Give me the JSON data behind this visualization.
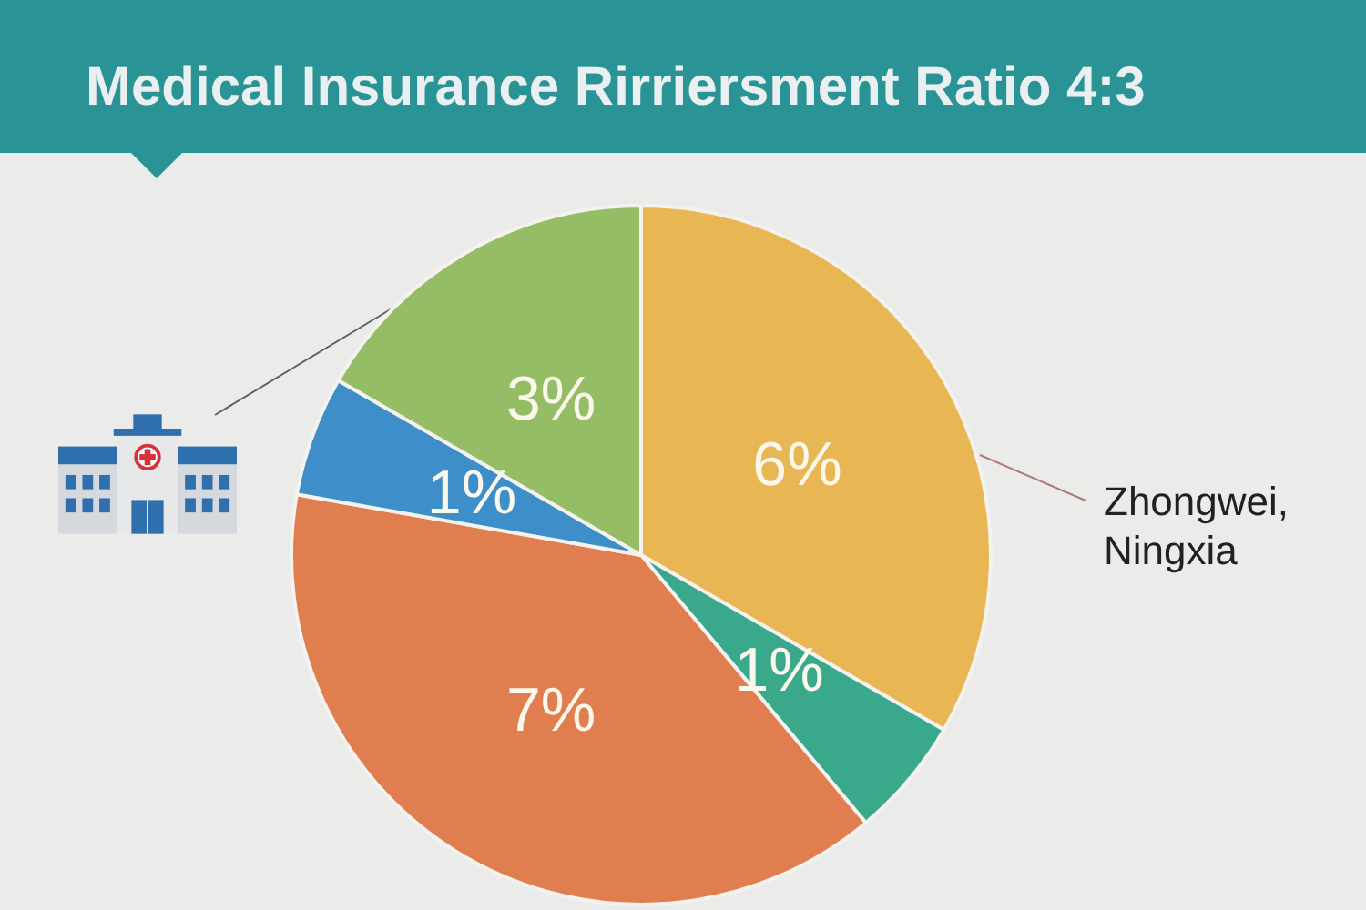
{
  "chart_data": {
    "type": "pie",
    "title": "Medical Insurance Rirriersment Ratio 4:3",
    "categories": [
      null,
      null,
      null,
      null,
      null
    ],
    "values": [
      6,
      1,
      7,
      1,
      3
    ],
    "colors": [
      "#e8b753",
      "#3aa98b",
      "#e07e4f",
      "#3e8fc9",
      "#94bd66"
    ],
    "value_labels": [
      "6%",
      "1%",
      "7%",
      "1%",
      "3%"
    ],
    "annotations": [
      "Zhongwei, Ningxia"
    ]
  }
}
